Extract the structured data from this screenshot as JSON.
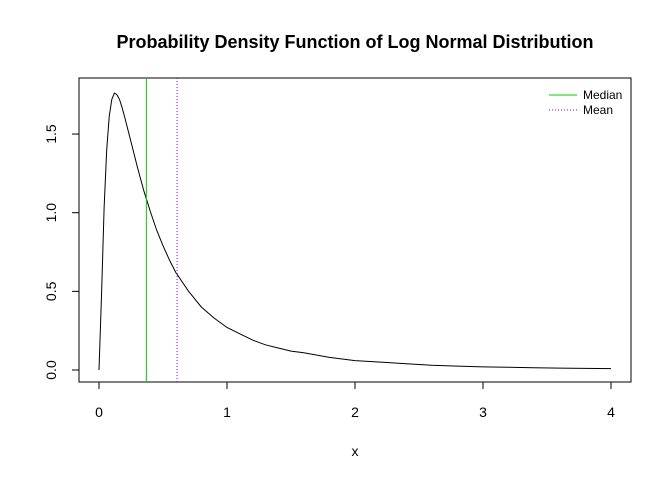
{
  "chart_data": {
    "type": "line",
    "title": "Probability Density Function of Log Normal Distribution",
    "xlabel": "x",
    "ylabel": "",
    "xlim": [
      0,
      4
    ],
    "ylim": [
      0,
      1.78
    ],
    "xticks": [
      0,
      1,
      2,
      3,
      4
    ],
    "xtick_labels": [
      "0",
      "1",
      "2",
      "3",
      "4"
    ],
    "yticks": [
      0,
      0.5,
      1,
      1.5
    ],
    "ytick_labels": [
      "0.0",
      "0.5",
      "1.0",
      "1.5"
    ],
    "grid": false,
    "legend_position": "top-right",
    "series": [
      {
        "color": "#000000",
        "x": [
          0,
          0.02,
          0.04,
          0.06,
          0.08,
          0.1,
          0.12,
          0.14,
          0.16,
          0.18,
          0.2,
          0.25,
          0.3,
          0.35,
          0.4,
          0.45,
          0.5,
          0.55,
          0.6,
          0.7,
          0.8,
          0.9,
          1.0,
          1.1,
          1.2,
          1.3,
          1.4,
          1.5,
          1.6,
          1.8,
          2.0,
          2.2,
          2.4,
          2.6,
          2.8,
          3.0,
          3.2,
          3.4,
          3.6,
          3.8,
          4.0
        ],
        "y": [
          0,
          0.49,
          1.03,
          1.4,
          1.61,
          1.72,
          1.76,
          1.75,
          1.72,
          1.67,
          1.61,
          1.45,
          1.29,
          1.14,
          1.01,
          0.89,
          0.79,
          0.7,
          0.62,
          0.5,
          0.4,
          0.33,
          0.27,
          0.23,
          0.19,
          0.16,
          0.14,
          0.12,
          0.11,
          0.08,
          0.06,
          0.05,
          0.04,
          0.03,
          0.025,
          0.02,
          0.017,
          0.014,
          0.012,
          0.01,
          0.009
        ]
      }
    ],
    "vlines": [
      {
        "name": "Median",
        "x": 0.37,
        "color": "#00cc00",
        "style": "solid"
      },
      {
        "name": "Mean",
        "x": 0.61,
        "color": "#9900cc",
        "style": "dotted"
      }
    ],
    "legend": [
      {
        "label": "Median",
        "color": "#00cc00",
        "style": "solid"
      },
      {
        "label": "Mean",
        "color": "#9900cc",
        "style": "dotted"
      }
    ]
  }
}
